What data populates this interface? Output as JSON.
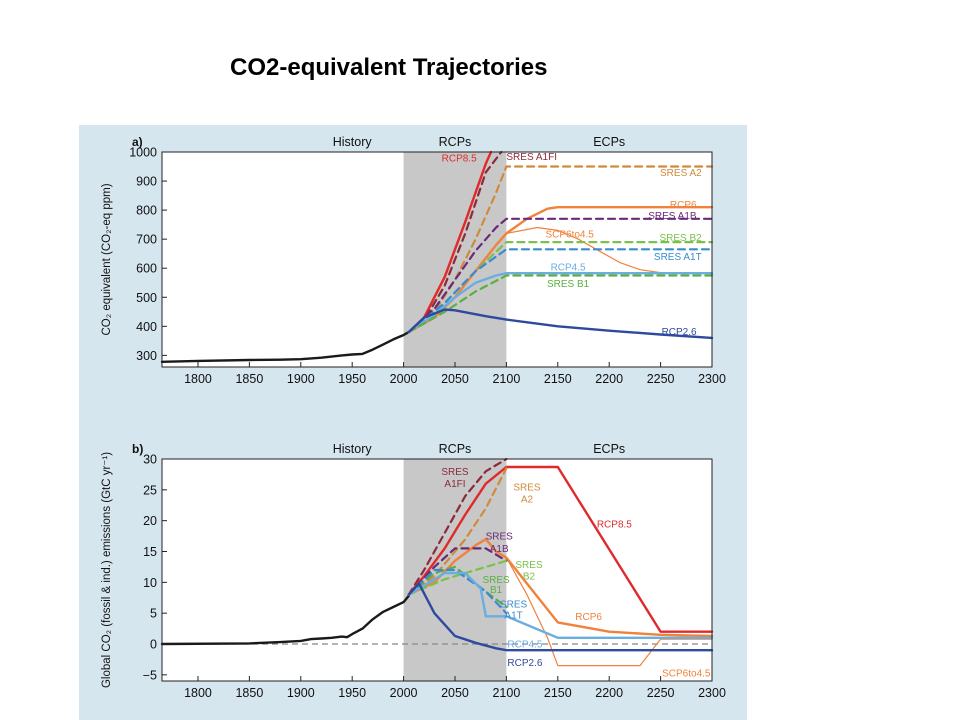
{
  "slide": {
    "title": "CO2-equivalent Trajectories"
  },
  "colors": {
    "background": "#d6e6ef",
    "shade": "#c8c8c8",
    "history": "#1a1a1a",
    "rcp85": "#e02a2a",
    "rcp6": "#f0823c",
    "rcp45": "#6aaee0",
    "rcp26": "#2e4a9e",
    "sres_a1fi": "#8b2a3a",
    "sres_a2": "#d08a3a",
    "sres_a1b": "#6a2a7a",
    "sres_b2": "#7ac04a",
    "sres_a1t": "#3a8ad0",
    "sres_b1": "#5ab040"
  },
  "chart_data": [
    {
      "type": "line",
      "panel_label": "a)",
      "ylabel": "CO₂ equivalent (CO₂-eq ppm)",
      "xlim": [
        1765,
        2300
      ],
      "ylim": [
        260,
        1000
      ],
      "x_ticks": [
        "1800",
        "1850",
        "1900",
        "1950",
        "2000",
        "2050",
        "2100",
        "2150",
        "2200",
        "2250",
        "2300"
      ],
      "y_ticks": [
        "300",
        "400",
        "500",
        "600",
        "700",
        "800",
        "900",
        "1000"
      ],
      "period_labels": [
        "History",
        "RCPs",
        "ECPs"
      ],
      "shaded_region": [
        2000,
        2100
      ],
      "series": [
        {
          "name": "History",
          "style": "solid",
          "color_key": "history",
          "width": 2.4,
          "x": [
            1765,
            1800,
            1850,
            1880,
            1900,
            1920,
            1940,
            1950,
            1960,
            1970,
            1980,
            1990,
            2000,
            2005
          ],
          "y": [
            278,
            281,
            284,
            285,
            287,
            292,
            300,
            303,
            305,
            320,
            337,
            355,
            370,
            380
          ]
        },
        {
          "name": "RCP8.5",
          "style": "solid",
          "color_key": "rcp85",
          "width": 2.4,
          "x": [
            2005,
            2020,
            2040,
            2060,
            2080,
            2085
          ],
          "y": [
            380,
            430,
            570,
            760,
            960,
            1000
          ]
        },
        {
          "name": "SRES A1FI",
          "style": "dashed",
          "color_key": "sres_a1fi",
          "width": 2.2,
          "x": [
            2005,
            2020,
            2040,
            2060,
            2080,
            2095
          ],
          "y": [
            380,
            420,
            540,
            720,
            930,
            1000
          ]
        },
        {
          "name": "SRES A2",
          "style": "dashed",
          "color_key": "sres_a2",
          "width": 2.2,
          "x": [
            2005,
            2030,
            2050,
            2070,
            2090,
            2100,
            2300
          ],
          "y": [
            380,
            450,
            560,
            700,
            860,
            950,
            950
          ]
        },
        {
          "name": "RCP6",
          "style": "solid",
          "color_key": "rcp6",
          "width": 2.4,
          "x": [
            2005,
            2030,
            2050,
            2070,
            2090,
            2100,
            2120,
            2140,
            2150,
            2300
          ],
          "y": [
            380,
            430,
            500,
            590,
            680,
            720,
            770,
            805,
            810,
            810
          ]
        },
        {
          "name": "SRES A1B",
          "style": "dashed",
          "color_key": "sres_a1b",
          "width": 2.2,
          "x": [
            2005,
            2030,
            2050,
            2070,
            2090,
            2100,
            2300
          ],
          "y": [
            380,
            460,
            560,
            660,
            740,
            770,
            770
          ]
        },
        {
          "name": "SCP6to4.5",
          "style": "solid",
          "color_key": "rcp6",
          "width": 1.2,
          "x": [
            2100,
            2130,
            2150,
            2170,
            2190,
            2210,
            2230,
            2250,
            2300
          ],
          "y": [
            720,
            740,
            730,
            700,
            660,
            620,
            595,
            585,
            585
          ]
        },
        {
          "name": "SRES B2",
          "style": "dashed",
          "color_key": "sres_b2",
          "width": 2.2,
          "x": [
            2005,
            2040,
            2070,
            2100,
            2300
          ],
          "y": [
            380,
            480,
            590,
            690,
            690
          ]
        },
        {
          "name": "SRES A1T",
          "style": "dashed",
          "color_key": "sres_a1t",
          "width": 2.2,
          "x": [
            2005,
            2040,
            2070,
            2100,
            2300
          ],
          "y": [
            380,
            480,
            590,
            665,
            665
          ]
        },
        {
          "name": "RCP4.5",
          "style": "solid",
          "color_key": "rcp45",
          "width": 2.4,
          "x": [
            2005,
            2030,
            2050,
            2070,
            2090,
            2100,
            2300
          ],
          "y": [
            380,
            440,
            500,
            550,
            575,
            583,
            583
          ]
        },
        {
          "name": "SRES B1",
          "style": "dashed",
          "color_key": "sres_b1",
          "width": 2.2,
          "x": [
            2005,
            2040,
            2070,
            2100,
            2300
          ],
          "y": [
            380,
            450,
            520,
            575,
            575
          ]
        },
        {
          "name": "RCP2.6",
          "style": "solid",
          "color_key": "rcp26",
          "width": 2.4,
          "x": [
            2005,
            2020,
            2040,
            2050,
            2080,
            2100,
            2150,
            2200,
            2250,
            2300
          ],
          "y": [
            380,
            430,
            458,
            455,
            435,
            423,
            400,
            385,
            372,
            360
          ]
        }
      ],
      "labels": [
        {
          "text": "RCP8.5",
          "x": 2037,
          "y": 980,
          "color_key": "rcp85",
          "anchor": "start"
        },
        {
          "text": "SRES A1FI",
          "x": 2100,
          "y": 985,
          "color_key": "sres_a1fi",
          "anchor": "start"
        },
        {
          "text": "SRES A2",
          "x": 2290,
          "y": 930,
          "color_key": "sres_a2",
          "anchor": "end"
        },
        {
          "text": "RCP6",
          "x": 2285,
          "y": 820,
          "color_key": "rcp6",
          "anchor": "end"
        },
        {
          "text": "SRES A1B",
          "x": 2285,
          "y": 782,
          "color_key": "sres_a1b",
          "anchor": "end"
        },
        {
          "text": "SCP6to4.5",
          "x": 2138,
          "y": 718,
          "color_key": "rcp6",
          "anchor": "start"
        },
        {
          "text": "SRES B2",
          "x": 2290,
          "y": 705,
          "color_key": "sres_b2",
          "anchor": "end"
        },
        {
          "text": "SRES A1T",
          "x": 2290,
          "y": 640,
          "color_key": "sres_a1t",
          "anchor": "end"
        },
        {
          "text": "RCP4.5",
          "x": 2160,
          "y": 605,
          "color_key": "rcp45",
          "anchor": "middle"
        },
        {
          "text": "SRES B1",
          "x": 2160,
          "y": 548,
          "color_key": "sres_b1",
          "anchor": "middle"
        },
        {
          "text": "RCP2.6",
          "x": 2285,
          "y": 382,
          "color_key": "rcp26",
          "anchor": "end"
        }
      ]
    },
    {
      "type": "line",
      "panel_label": "b)",
      "ylabel": "Global CO₂ (fossil & ind.) emissions (GtC yr⁻¹)",
      "xlim": [
        1765,
        2300
      ],
      "ylim": [
        -6,
        30
      ],
      "x_ticks": [
        "1800",
        "1850",
        "1900",
        "1950",
        "2000",
        "2050",
        "2100",
        "2150",
        "2200",
        "2250",
        "2300"
      ],
      "y_ticks": [
        "−5",
        "0",
        "5",
        "10",
        "15",
        "20",
        "25",
        "30"
      ],
      "period_labels": [
        "History",
        "RCPs",
        "ECPs"
      ],
      "shaded_region": [
        2000,
        2100
      ],
      "zero_line": 0,
      "series": [
        {
          "name": "History",
          "style": "solid",
          "color_key": "history",
          "width": 2.4,
          "x": [
            1765,
            1850,
            1880,
            1900,
            1910,
            1920,
            1930,
            1940,
            1945,
            1950,
            1960,
            1970,
            1980,
            1990,
            2000,
            2005
          ],
          "y": [
            0,
            0.1,
            0.3,
            0.5,
            0.8,
            0.9,
            1.0,
            1.2,
            1.1,
            1.6,
            2.5,
            4.0,
            5.2,
            6.0,
            6.8,
            7.8
          ]
        },
        {
          "name": "SRES A1FI",
          "style": "dashed",
          "color_key": "sres_a1fi",
          "width": 2.2,
          "x": [
            2005,
            2020,
            2040,
            2060,
            2080,
            2100
          ],
          "y": [
            8,
            12,
            18,
            24,
            28,
            30
          ]
        },
        {
          "name": "RCP8.5",
          "style": "solid",
          "color_key": "rcp85",
          "width": 2.4,
          "x": [
            2005,
            2020,
            2040,
            2060,
            2080,
            2100,
            2150,
            2250,
            2300
          ],
          "y": [
            8,
            11,
            15.5,
            21,
            26,
            28.7,
            28.7,
            2,
            2
          ]
        },
        {
          "name": "SRES A2",
          "style": "dashed",
          "color_key": "sres_a2",
          "width": 2.2,
          "x": [
            2005,
            2030,
            2060,
            2080,
            2100
          ],
          "y": [
            8,
            11,
            17,
            22,
            28.5
          ]
        },
        {
          "name": "RCP6",
          "style": "solid",
          "color_key": "rcp6",
          "width": 2.4,
          "x": [
            2005,
            2030,
            2050,
            2070,
            2080,
            2090,
            2100,
            2150,
            2200,
            2250,
            2300
          ],
          "y": [
            8,
            10,
            13.5,
            16,
            17,
            15,
            14,
            3.5,
            2,
            1.5,
            1.3
          ]
        },
        {
          "name": "SCP6to4.5",
          "style": "solid",
          "color_key": "rcp6",
          "width": 1.2,
          "x": [
            2100,
            2120,
            2140,
            2150,
            2230,
            2250,
            2300
          ],
          "y": [
            14,
            8,
            1,
            -3.5,
            -3.5,
            0.8,
            0.8
          ]
        },
        {
          "name": "SRES A1B",
          "style": "dashed",
          "color_key": "sres_a1b",
          "width": 2.2,
          "x": [
            2005,
            2030,
            2050,
            2080,
            2100
          ],
          "y": [
            8,
            12.5,
            15.5,
            15.5,
            13.5
          ]
        },
        {
          "name": "SRES B2",
          "style": "dashed",
          "color_key": "sres_b2",
          "width": 2.2,
          "x": [
            2005,
            2040,
            2070,
            2100
          ],
          "y": [
            8,
            10.5,
            12,
            13.5
          ]
        },
        {
          "name": "SRES B1",
          "style": "dashed",
          "color_key": "sres_b1",
          "width": 2.2,
          "x": [
            2005,
            2030,
            2050,
            2080,
            2100
          ],
          "y": [
            8,
            11.5,
            12.5,
            8.5,
            6
          ]
        },
        {
          "name": "SRES A1T",
          "style": "dashed",
          "color_key": "sres_a1t",
          "width": 2.2,
          "x": [
            2005,
            2030,
            2050,
            2080,
            2100
          ],
          "y": [
            8,
            12,
            12,
            8.5,
            5
          ]
        },
        {
          "name": "RCP4.5",
          "style": "solid",
          "color_key": "rcp45",
          "width": 2.4,
          "x": [
            2005,
            2030,
            2040,
            2060,
            2075,
            2080,
            2100,
            2150,
            2300
          ],
          "y": [
            8,
            10.5,
            11.5,
            11.5,
            9,
            4.5,
            4.5,
            1,
            1
          ]
        },
        {
          "name": "RCP2.6",
          "style": "solid",
          "color_key": "rcp26",
          "width": 2.4,
          "x": [
            2005,
            2015,
            2030,
            2050,
            2070,
            2090,
            2100,
            2300
          ],
          "y": [
            8,
            9.8,
            5,
            1.3,
            0.2,
            -0.7,
            -1,
            -1
          ]
        }
      ],
      "labels": [
        {
          "text": "SRES",
          "x": 2050,
          "y": 28,
          "color_key": "sres_a1fi",
          "anchor": "middle"
        },
        {
          "text": "A1FI",
          "x": 2050,
          "y": 26,
          "color_key": "sres_a1fi",
          "anchor": "middle"
        },
        {
          "text": "SRES",
          "x": 2120,
          "y": 25.5,
          "color_key": "sres_a2",
          "anchor": "middle"
        },
        {
          "text": "A2",
          "x": 2120,
          "y": 23.5,
          "color_key": "sres_a2",
          "anchor": "middle"
        },
        {
          "text": "RCP8.5",
          "x": 2205,
          "y": 19.5,
          "color_key": "rcp85",
          "anchor": "middle"
        },
        {
          "text": "SRES",
          "x": 2093,
          "y": 17.5,
          "color_key": "sres_a1b",
          "anchor": "middle"
        },
        {
          "text": "A1B",
          "x": 2093,
          "y": 15.5,
          "color_key": "sres_a1b",
          "anchor": "middle"
        },
        {
          "text": "SRES",
          "x": 2122,
          "y": 12.9,
          "color_key": "sres_b2",
          "anchor": "middle"
        },
        {
          "text": "B2",
          "x": 2122,
          "y": 11,
          "color_key": "sres_b2",
          "anchor": "middle"
        },
        {
          "text": "SRES",
          "x": 2090,
          "y": 10.5,
          "color_key": "sres_b1",
          "anchor": "middle"
        },
        {
          "text": "B1",
          "x": 2090,
          "y": 8.8,
          "color_key": "sres_b1",
          "anchor": "middle"
        },
        {
          "text": "SRES",
          "x": 2107,
          "y": 6.5,
          "color_key": "sres_a1t",
          "anchor": "middle"
        },
        {
          "text": "A1T",
          "x": 2107,
          "y": 4.7,
          "color_key": "sres_a1t",
          "anchor": "middle"
        },
        {
          "text": "RCP6",
          "x": 2180,
          "y": 4.5,
          "color_key": "rcp6",
          "anchor": "middle"
        },
        {
          "text": "RCP4.5",
          "x": 2118,
          "y": 0,
          "color_key": "rcp45",
          "anchor": "middle"
        },
        {
          "text": "RCP2.6",
          "x": 2118,
          "y": -3,
          "color_key": "rcp26",
          "anchor": "middle"
        },
        {
          "text": "SCP6to4.5",
          "x": 2275,
          "y": -4.7,
          "color_key": "rcp6",
          "anchor": "middle"
        }
      ]
    }
  ]
}
